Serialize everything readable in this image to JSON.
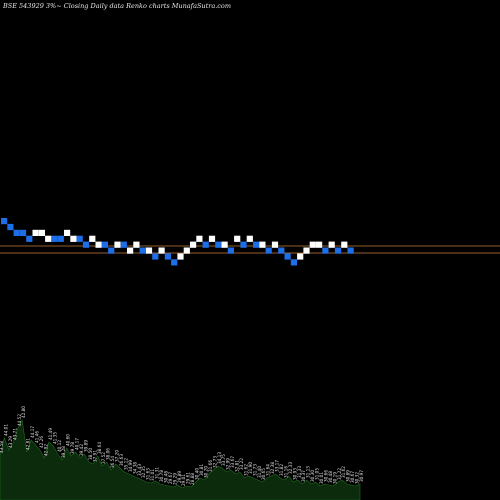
{
  "chart_data": {
    "type": "renko",
    "title": "BSE 543929 3%~ Closing Daily data Renko charts MunafaSutra.com",
    "colors": {
      "background": "#000000",
      "up_brick": "#ffffff",
      "down_brick": "#1e6ee8",
      "reference_line": "#c87a3c",
      "volume_fill": "#0c2a0c",
      "volume_edge": "#1f6d1f"
    },
    "brick_levels": [
      3,
      4,
      5,
      5,
      6,
      5,
      5,
      6,
      6,
      6,
      5,
      6,
      6,
      7,
      6,
      7,
      7,
      8,
      7,
      7,
      8,
      7,
      8,
      8,
      9,
      8,
      9,
      10,
      9,
      8,
      7,
      6,
      7,
      6,
      7,
      7,
      8,
      6,
      7,
      6,
      7,
      7,
      8,
      7,
      8,
      9,
      10,
      9,
      8,
      7,
      7,
      8,
      7,
      8,
      7,
      8
    ],
    "brick_colors": [
      "down",
      "down",
      "down",
      "down",
      "down",
      "up",
      "up",
      "up",
      "down",
      "down",
      "up",
      "up",
      "down",
      "down",
      "up",
      "up",
      "down",
      "down",
      "up",
      "down",
      "up",
      "up",
      "down",
      "up",
      "down",
      "up",
      "down",
      "down",
      "up",
      "up",
      "up",
      "up",
      "down",
      "up",
      "down",
      "up",
      "down",
      "up",
      "down",
      "up",
      "down",
      "up",
      "down",
      "up",
      "down",
      "down",
      "down",
      "up",
      "up",
      "up",
      "up",
      "down",
      "up",
      "down",
      "up",
      "down"
    ],
    "reference_lines": [
      246,
      253
    ],
    "volume_labels": [
      "43.58",
      "44.01",
      "43.29",
      "43.71",
      "44.52",
      "42.80",
      "42.81",
      "44.17",
      "41.46",
      "42.26",
      "42.92",
      "41.49",
      "41.35",
      "40.12",
      "39.28",
      "40.60",
      "39.78",
      "40.17",
      "39.42",
      "39.89",
      "38.50",
      "37.91",
      "38.64",
      "37.52",
      "38.06",
      "36.54",
      "37.20",
      "36.63",
      "35.12",
      "34.99",
      "34.38",
      "33.43",
      "32.35",
      "31.63",
      "31.01",
      "31.31",
      "30.78",
      "30.48",
      "29.67",
      "29.29",
      "29.89",
      "29.01",
      "29.61",
      "28.88",
      "30.40",
      "30.81",
      "30.20",
      "31.66",
      "32.73",
      "34.13",
      "33.75",
      "32.99",
      "33.67",
      "32.81",
      "33.22",
      "31.62",
      "31.90",
      "31.73",
      "31.40",
      "30.65",
      "31.64",
      "32.38",
      "33.17",
      "31.82",
      "31.16",
      "32.33",
      "30.93",
      "31.33",
      "30.37",
      "31.13",
      "30.30",
      "31.05",
      "30.01",
      "30.66",
      "30.48",
      "30.19",
      "31.22",
      "31.62",
      "30.89",
      "30.67",
      "30.32",
      "30.97"
    ],
    "volume_heights": [
      45,
      62,
      50,
      58,
      72,
      80,
      48,
      60,
      55,
      50,
      42,
      58,
      54,
      46,
      40,
      52,
      44,
      48,
      42,
      46,
      38,
      36,
      44,
      34,
      38,
      30,
      36,
      32,
      28,
      26,
      24,
      22,
      20,
      18,
      17,
      19,
      16,
      15,
      14,
      13,
      15,
      12,
      14,
      13,
      18,
      22,
      20,
      26,
      30,
      34,
      32,
      28,
      30,
      26,
      28,
      22,
      24,
      22,
      20,
      18,
      22,
      24,
      26,
      22,
      20,
      24,
      18,
      20,
      16,
      20,
      16,
      18,
      14,
      16,
      15,
      14,
      18,
      20,
      16,
      15,
      14,
      16
    ]
  }
}
